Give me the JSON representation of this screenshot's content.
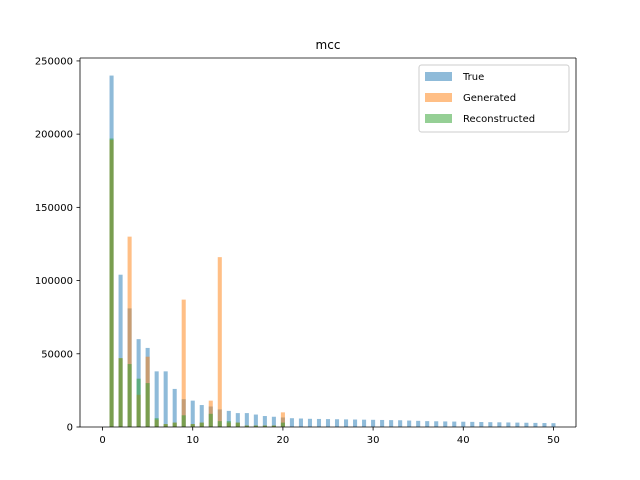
{
  "chart_data": {
    "type": "bar",
    "title": "mcc",
    "xlabel": "",
    "ylabel": "",
    "xlim": [
      -2.5,
      52.5
    ],
    "ylim": [
      0,
      252000
    ],
    "xticks": [
      0,
      10,
      20,
      30,
      40,
      50
    ],
    "yticks": [
      0,
      50000,
      100000,
      150000,
      200000,
      250000
    ],
    "ytick_labels": [
      "0",
      "50000",
      "100000",
      "150000",
      "200000",
      "250000"
    ],
    "legend_position": "top-right",
    "grid": false,
    "series": [
      {
        "name": "True",
        "color": "#1f77b4",
        "opacity": 0.5,
        "x": [
          1,
          2,
          3,
          4,
          5,
          6,
          7,
          8,
          9,
          10,
          11,
          12,
          13,
          14,
          15,
          16,
          17,
          18,
          19,
          20,
          21,
          22,
          23,
          24,
          25,
          26,
          27,
          28,
          29,
          30,
          31,
          32,
          33,
          34,
          35,
          36,
          37,
          38,
          39,
          40,
          41,
          42,
          43,
          44,
          45,
          46,
          47,
          48,
          49,
          50
        ],
        "values": [
          240000,
          104000,
          81000,
          60000,
          54000,
          38000,
          38000,
          26000,
          19000,
          18000,
          15000,
          14000,
          12000,
          11000,
          9500,
          9500,
          8500,
          7500,
          7000,
          6500,
          6000,
          5800,
          5600,
          5500,
          5400,
          5300,
          5200,
          5100,
          5000,
          4900,
          4800,
          4700,
          4600,
          4400,
          4200,
          4000,
          3900,
          3800,
          3700,
          3600,
          3500,
          3400,
          3300,
          3200,
          3100,
          3000,
          2900,
          2800,
          2700,
          2600
        ]
      },
      {
        "name": "Generated",
        "color": "#ff7f0e",
        "opacity": 0.5,
        "x": [
          1,
          2,
          3,
          4,
          5,
          6,
          7,
          8,
          9,
          10,
          11,
          12,
          13,
          14,
          15,
          16,
          17,
          18,
          19,
          20
        ],
        "values": [
          196000,
          47000,
          130000,
          22000,
          48000,
          5000,
          2000,
          3000,
          87000,
          2000,
          3000,
          18000,
          116000,
          3000,
          3000,
          1000,
          1000,
          1000,
          1000,
          10000
        ]
      },
      {
        "name": "Reconstructed",
        "color": "#2ca02c",
        "opacity": 0.5,
        "x": [
          1,
          2,
          3,
          4,
          5,
          6,
          7,
          8,
          9,
          10,
          11,
          12,
          13,
          14,
          15,
          16,
          17,
          18,
          19,
          20
        ],
        "values": [
          197000,
          47000,
          43000,
          33000,
          30000,
          6000,
          2000,
          3000,
          8000,
          2000,
          3000,
          9000,
          4000,
          4000,
          3000,
          1000,
          1000,
          1000,
          1000,
          3000
        ]
      }
    ]
  }
}
